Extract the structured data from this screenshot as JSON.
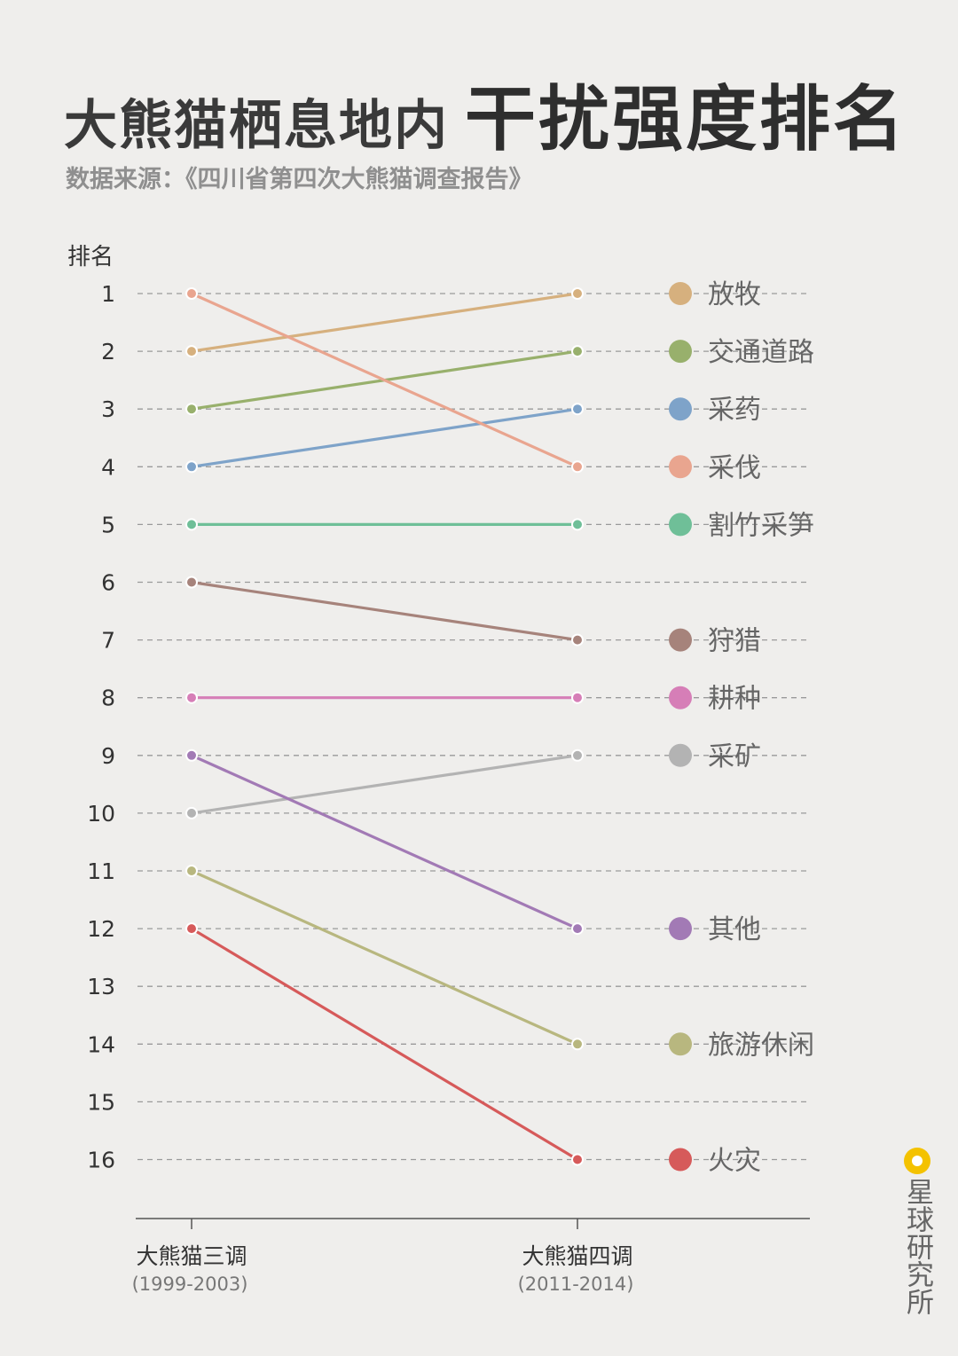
{
  "title_part1": "大熊猫栖息地内",
  "title_part2": "干扰强度排名",
  "subtitle": "数据来源：《四川省第四次大熊猫调查报告》",
  "brand": {
    "name": "星球研究所",
    "icon": "planet-dot-icon",
    "color": "#f4c200"
  },
  "chart_data": {
    "type": "line",
    "ylabel": "排名",
    "ylim": [
      1,
      16
    ],
    "y_inverted": true,
    "y_ticks": [
      "1",
      "2",
      "3",
      "4",
      "5",
      "6",
      "7",
      "8",
      "9",
      "10",
      "11",
      "12",
      "13",
      "14",
      "15",
      "16"
    ],
    "grid": "dashed horizontal",
    "x": [
      {
        "label": "大熊猫三调",
        "sub": "(1999-2003)"
      },
      {
        "label": "大熊猫四调",
        "sub": "(2011-2014)"
      }
    ],
    "legend_placement": "right",
    "series": [
      {
        "name": "放牧",
        "color": "#d6b07e",
        "values": [
          2,
          1
        ]
      },
      {
        "name": "交通道路",
        "color": "#98b06c",
        "values": [
          3,
          2
        ]
      },
      {
        "name": "采药",
        "color": "#7ea3c9",
        "values": [
          4,
          3
        ]
      },
      {
        "name": "采伐",
        "color": "#e9a58f",
        "values": [
          1,
          4
        ]
      },
      {
        "name": "割竹采笋",
        "color": "#6fbf98",
        "values": [
          5,
          5
        ]
      },
      {
        "name": "狩猎",
        "color": "#a6837b",
        "values": [
          6,
          7
        ]
      },
      {
        "name": "耕种",
        "color": "#d67eb7",
        "values": [
          8,
          8
        ]
      },
      {
        "name": "采矿",
        "color": "#b3b3b3",
        "values": [
          10,
          9
        ]
      },
      {
        "name": "其他",
        "color": "#a27ab5",
        "values": [
          9,
          12
        ]
      },
      {
        "name": "旅游休闲",
        "color": "#b8b77f",
        "values": [
          11,
          14
        ]
      },
      {
        "name": "火灾",
        "color": "#d65a5a",
        "values": [
          12,
          16
        ]
      }
    ]
  }
}
